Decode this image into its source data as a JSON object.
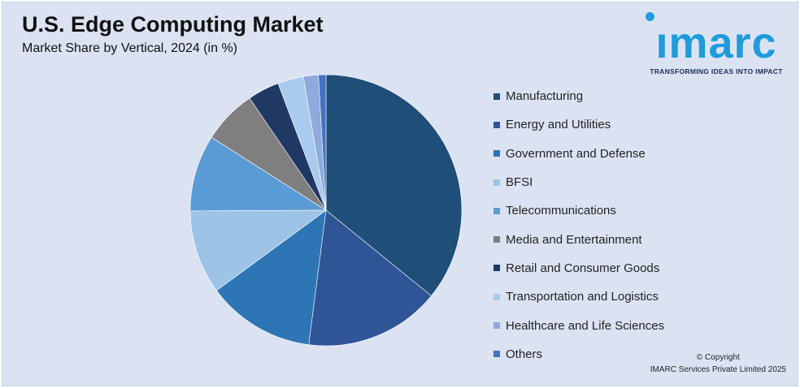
{
  "header": {
    "title": "U.S. Edge Computing Market",
    "subtitle": "Market Share by Vertical, 2024 (in %)"
  },
  "logo": {
    "word": "ımarc",
    "tagline": "TRANSFORMING IDEAS INTO IMPACT",
    "color": "#1f9bdc",
    "tagline_color": "#1c2d58"
  },
  "footer": {
    "copyright_line1": "© Copyright",
    "copyright_line2": "IMARC Services Private Limited 2025"
  },
  "chart_data": {
    "type": "pie",
    "title": "U.S. Edge Computing Market",
    "subtitle": "Market Share by Vertical, 2024 (in %)",
    "legend_position": "right",
    "start": "top, clockwise",
    "categories": [
      "Manufacturing",
      "Energy and Utilities",
      "Government and Defense",
      "BFSI",
      "Telecommunications",
      "Media and Entertainment",
      "Retail and Consumer Goods",
      "Transportation and Logistics",
      "Healthcare and Life Sciences",
      "Others"
    ],
    "values": [
      36.2,
      16.3,
      13.0,
      10.1,
      9.2,
      6.5,
      3.8,
      3.1,
      1.8,
      0.9
    ],
    "colors": [
      "#1f4e79",
      "#2f5597",
      "#2e75b6",
      "#9dc3e6",
      "#5b9bd5",
      "#7f7f7f",
      "#203864",
      "#a9cbee",
      "#8faadc",
      "#4472c4"
    ]
  }
}
